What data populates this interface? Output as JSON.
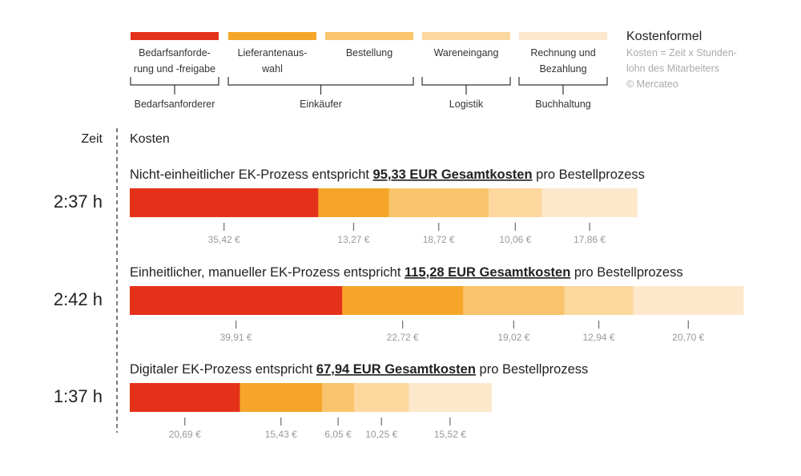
{
  "chart_data": {
    "type": "bar",
    "orientation": "horizontal-stacked",
    "unit": "€",
    "categories": [
      "Bedarfsanforderung und -freigabe",
      "Lieferantenauswahl",
      "Bestellung",
      "Wareneingang",
      "Rechnung und Bezahlung"
    ],
    "legend": [
      {
        "lines": [
          "Bedarfsanforde-",
          "rung und -freigabe"
        ],
        "color": "#e4321a"
      },
      {
        "lines": [
          "Lieferantenaus-",
          "wahl"
        ],
        "color": "#f5a62a"
      },
      {
        "lines": [
          "Bestellung"
        ],
        "color": "#f9c46c"
      },
      {
        "lines": [
          "Wareneingang"
        ],
        "color": "#fcd89f"
      },
      {
        "lines": [
          "Rechnung und",
          "Bezahlung"
        ],
        "color": "#fde8cc"
      }
    ],
    "groups": [
      {
        "label": "Bedarfsanforderer",
        "from": 0,
        "to": 0
      },
      {
        "label": "Einkäufer",
        "from": 1,
        "to": 2
      },
      {
        "label": "Logistik",
        "from": 3,
        "to": 3
      },
      {
        "label": "Buchhaltung",
        "from": 4,
        "to": 4
      }
    ],
    "formula": {
      "title": "Kostenformel",
      "lines": [
        "Kosten = Zeit x Stunden-",
        "lohn des Mitarbeiters",
        "© Mercateo"
      ]
    },
    "time_header": "Zeit",
    "cost_header": "Kosten",
    "series": [
      {
        "time": "2:37 h",
        "title_prefix": "Nicht-einheitlicher EK-Prozess entspricht ",
        "title_bold": "95,33 EUR Gesamtkosten",
        "title_suffix": " pro Bestellprozess",
        "total": 95.33,
        "values": [
          35.42,
          13.27,
          18.72,
          10.06,
          17.86
        ],
        "labels": [
          "35,42 €",
          "13,27 €",
          "18,72 €",
          "10,06 €",
          "17,86 €"
        ]
      },
      {
        "time": "2:42 h",
        "title_prefix": "Einheitlicher, manueller EK-Prozess entspricht ",
        "title_bold": "115,28 EUR Gesamtkosten",
        "title_suffix": " pro Bestellprozess",
        "total": 115.28,
        "values": [
          39.91,
          22.72,
          19.02,
          12.94,
          20.7
        ],
        "labels": [
          "39,91 €",
          "22,72 €",
          "19,02 €",
          "12,94 €",
          "20,70 €"
        ]
      },
      {
        "time": "1:37 h",
        "title_prefix": "Digitaler EK-Prozess entspricht ",
        "title_bold": "67,94 EUR Gesamtkosten",
        "title_suffix": " pro Bestellprozess",
        "total": 67.94,
        "values": [
          20.69,
          15.43,
          6.05,
          10.25,
          15.52
        ],
        "labels": [
          "20,69 €",
          "15,43 €",
          "6,05 €",
          "10,25 €",
          "15,52 €"
        ]
      }
    ],
    "xlim": [
      0,
      115.28
    ]
  }
}
